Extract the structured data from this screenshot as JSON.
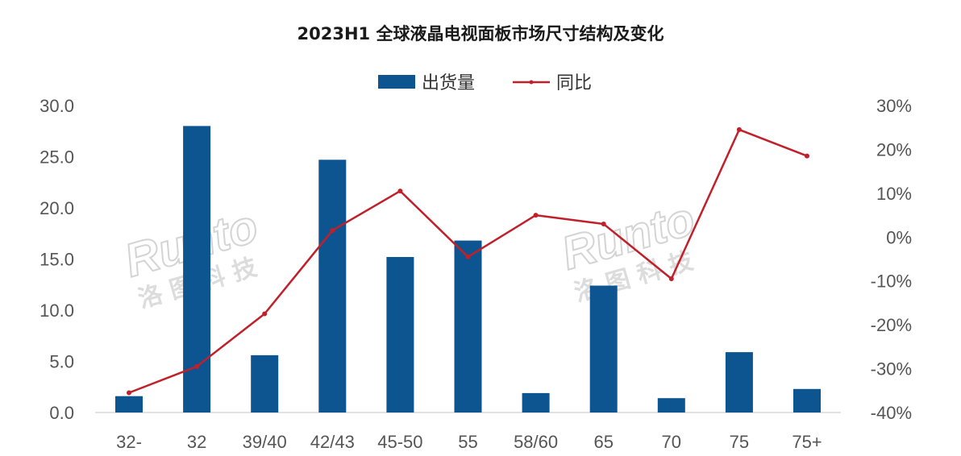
{
  "chart_data": {
    "type": "bar",
    "title": "2023H1 全球液晶电视面板市场尺寸结构及变化",
    "categories": [
      "32-",
      "32",
      "39/40",
      "42/43",
      "45-50",
      "55",
      "58/60",
      "65",
      "70",
      "75",
      "75+"
    ],
    "series": [
      {
        "name": "出货量",
        "type": "bar",
        "axis": "left",
        "color": "#0d5590",
        "values": [
          1.6,
          28.0,
          5.6,
          24.7,
          15.2,
          16.8,
          1.9,
          12.4,
          1.4,
          5.9,
          2.3
        ]
      },
      {
        "name": "同比",
        "type": "line",
        "axis": "right",
        "color": "#c0202a",
        "values": [
          -35.5,
          -29.5,
          -17.5,
          1.5,
          10.5,
          -4.5,
          5.0,
          3.0,
          -9.5,
          24.5,
          18.5
        ]
      }
    ],
    "y_left": {
      "min": 0,
      "max": 30,
      "step": 5,
      "tick_labels": [
        "0.0",
        "5.0",
        "10.0",
        "15.0",
        "20.0",
        "25.0",
        "30.0"
      ]
    },
    "y_right": {
      "min": -40,
      "max": 30,
      "step": 10,
      "tick_labels": [
        "-40%",
        "-30%",
        "-20%",
        "-10%",
        "0%",
        "10%",
        "20%",
        "30%"
      ]
    },
    "legend": "top-center",
    "grid": false
  },
  "watermark": {
    "logo_text": "Runto",
    "chinese_text": "洛 图 科 技"
  }
}
